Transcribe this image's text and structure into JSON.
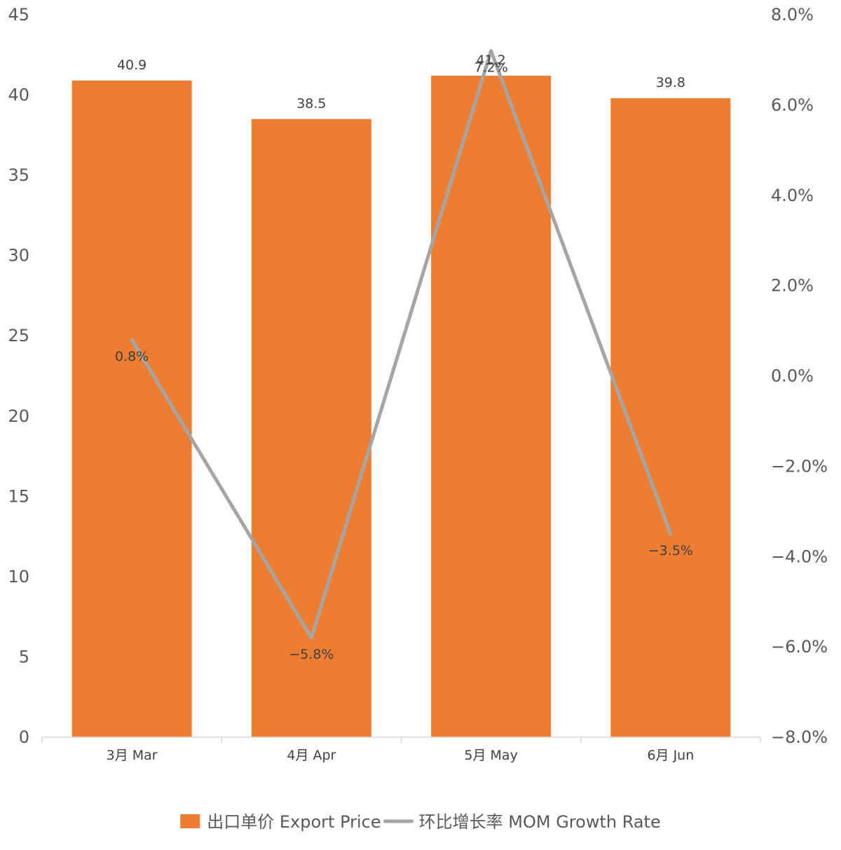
{
  "chart_data": {
    "type": "bar",
    "categories": [
      "3月 Mar",
      "4月 Apr",
      "5月 May",
      "6月 Jun"
    ],
    "series": [
      {
        "name": "出口单价 Export Price",
        "type": "bar",
        "axis": "left",
        "color": "#ED7D31",
        "values": [
          40.9,
          38.5,
          41.2,
          39.8
        ],
        "labels": [
          "40.9",
          "38.5",
          "41.2",
          "39.8"
        ]
      },
      {
        "name": "环比增长率 MOM Growth Rate",
        "type": "line",
        "axis": "right",
        "color": "#A5A5A5",
        "values": [
          0.8,
          -5.8,
          7.2,
          -3.5
        ],
        "labels": [
          "0.8%",
          "−5.8%",
          "7.2%",
          "−3.5%"
        ]
      }
    ],
    "left_axis": {
      "ylim": [
        0,
        45
      ],
      "ticks": [
        "0",
        "5",
        "10",
        "15",
        "20",
        "25",
        "30",
        "35",
        "40",
        "45"
      ]
    },
    "right_axis": {
      "ylim": [
        -8,
        8
      ],
      "ticks": [
        "−8.0%",
        "−6.0%",
        "−4.0%",
        "−2.0%",
        "0.0%",
        "2.0%",
        "4.0%",
        "6.0%",
        "8.0%"
      ]
    },
    "grid": false,
    "legend": {
      "position": "bottom",
      "items": [
        "出口单价 Export Price",
        "环比增长率 MOM Growth Rate"
      ]
    }
  }
}
